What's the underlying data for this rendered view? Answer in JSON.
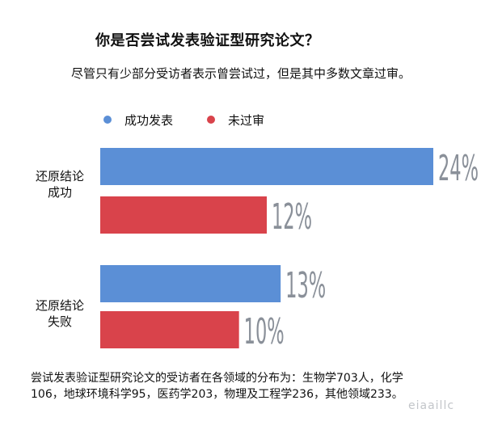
{
  "title": "你是否尝试发表验证型研究论文？",
  "subtitle": "尽管只有少部分受访者表示曾尝试过，但是其中多数文章过审。",
  "footnote": "尝试发表验证型研究论文的受访者在各领域的分布为：生物学703人，化学106，地球环境科学95，医药学203，物理及工程学236，其他领域233。",
  "watermark": "eiaaillc",
  "colors": {
    "published": "#5b8fd6",
    "passed": "#d9434b",
    "value_text": "#8a9099"
  },
  "chart_data": {
    "type": "bar",
    "orientation": "horizontal",
    "categories": [
      "还原结论成功",
      "还原结论失败"
    ],
    "series": [
      {
        "name": "成功发表",
        "values": [
          24,
          13
        ],
        "labels": [
          "24%",
          "13%"
        ]
      },
      {
        "name": "未过审",
        "values": [
          12,
          10
        ],
        "labels": [
          "12%",
          "10%"
        ]
      }
    ],
    "ylim": [
      0,
      25
    ],
    "grid": false,
    "legend_position": "top-left"
  }
}
